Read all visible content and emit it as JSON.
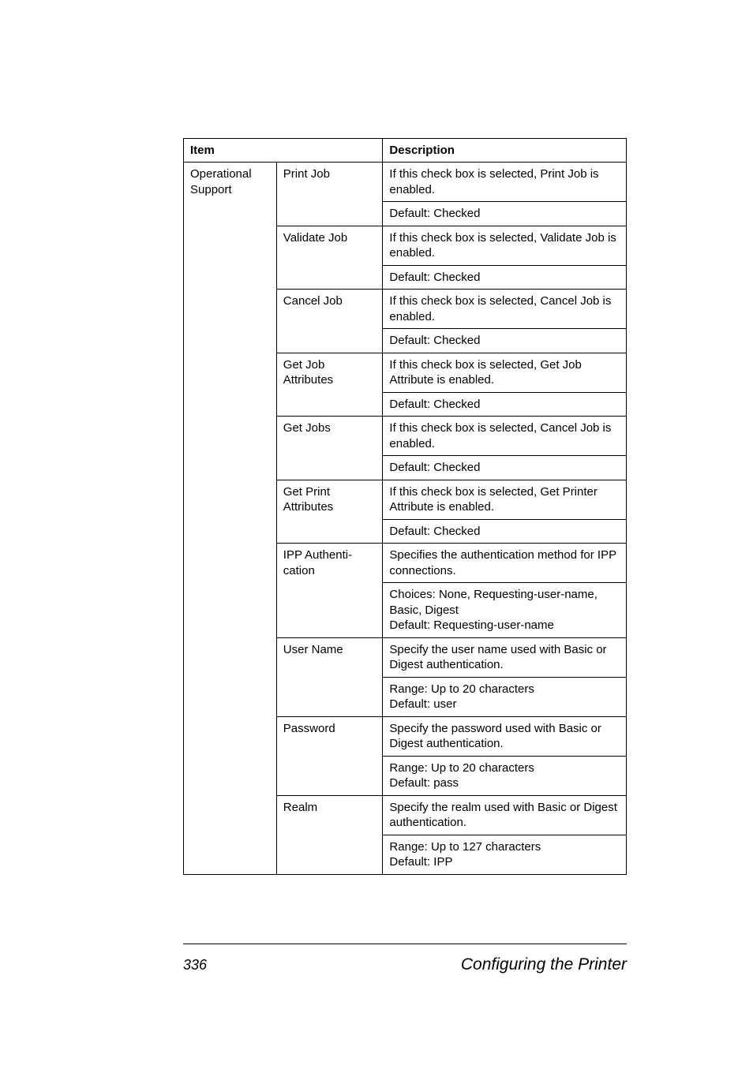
{
  "header": {
    "item": "Item",
    "description": "Description"
  },
  "group": "Operational Support",
  "rows": [
    {
      "sub": "Print Job",
      "desc": "If this check box is selected, Print Job is enabled.",
      "sub_rowspan": 2
    },
    {
      "desc": "Default:  Checked"
    },
    {
      "sub": "Validate Job",
      "desc": "If this check box is selected, Validate Job is enabled.",
      "sub_rowspan": 2
    },
    {
      "desc": "Default:  Checked"
    },
    {
      "sub": "Cancel Job",
      "desc": "If this check box is selected, Cancel Job is enabled.",
      "sub_rowspan": 2
    },
    {
      "desc": "Default:  Checked"
    },
    {
      "sub": "Get Job Attributes",
      "desc": "If this check box is selected, Get Job Attribute is enabled.",
      "sub_rowspan": 2
    },
    {
      "desc": "Default:  Checked"
    },
    {
      "sub": "Get Jobs",
      "desc": "If this check box is selected, Cancel Job is enabled.",
      "sub_rowspan": 2
    },
    {
      "desc": "Default:  Checked"
    },
    {
      "sub": "Get Print Attributes",
      "desc": "If this check box is selected, Get Printer Attribute is enabled.",
      "sub_rowspan": 2
    },
    {
      "desc": "Default:  Checked"
    },
    {
      "sub": "IPP Authenti-cation",
      "desc": "Specifies the authentication method for IPP connections.",
      "sub_rowspan": 2
    },
    {
      "desc": "Choices: None, Requesting-user-name, Basic, Digest\nDefault:  Requesting-user-name"
    },
    {
      "sub": "User Name",
      "desc": "Specify the user name used with Basic or Digest authentication.",
      "sub_rowspan": 2
    },
    {
      "desc": "Range:   Up to 20 characters\nDefault:  user"
    },
    {
      "sub": "Password",
      "desc": "Specify the password used with Basic or Digest authentication.",
      "sub_rowspan": 2
    },
    {
      "desc": "Range:   Up to 20 characters\nDefault:  pass"
    },
    {
      "sub": "Realm",
      "desc": "Specify the realm used with Basic or Digest authentication.",
      "sub_rowspan": 2
    },
    {
      "desc": "Range:   Up to 127 characters\nDefault:  IPP"
    }
  ],
  "footer": {
    "page": "336",
    "title": "Configuring the Printer"
  }
}
